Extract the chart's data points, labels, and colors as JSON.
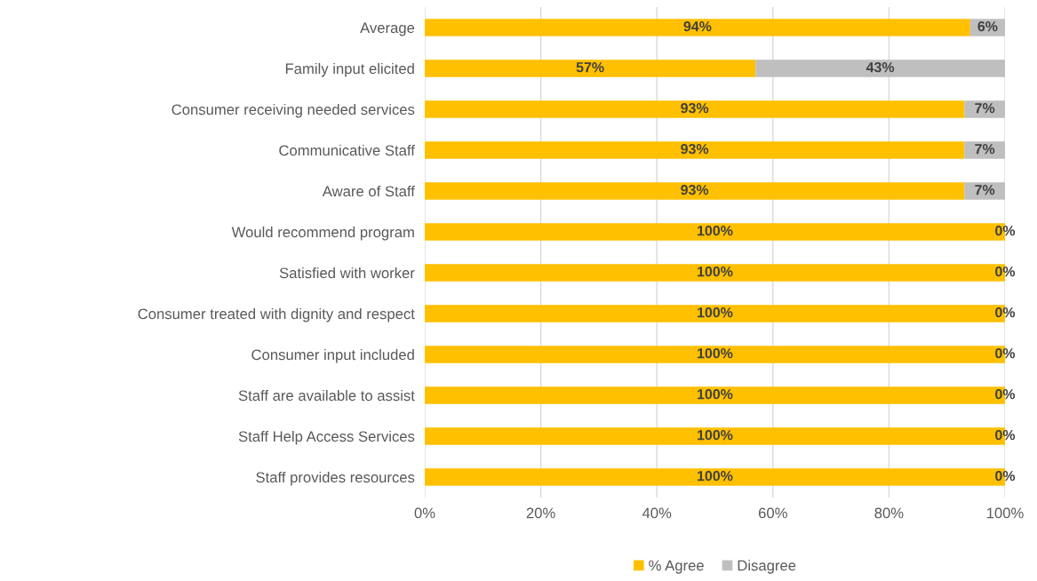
{
  "chart_data": {
    "type": "bar",
    "orientation": "horizontal",
    "stacked": true,
    "categories": [
      "Average",
      "Family input elicited",
      "Consumer receiving needed services",
      "Communicative Staff",
      "Aware of Staff",
      "Would recommend program",
      "Satisfied with worker",
      "Consumer treated with dignity and respect",
      "Consumer input included",
      "Staff are available to assist",
      "Staff Help Access Services",
      "Staff provides resources"
    ],
    "series": [
      {
        "name": "% Agree",
        "color": "#ffc000",
        "values": [
          94,
          57,
          93,
          93,
          93,
          100,
          100,
          100,
          100,
          100,
          100,
          100
        ],
        "value_labels": [
          "94%",
          "57%",
          "93%",
          "93%",
          "93%",
          "100%",
          "100%",
          "100%",
          "100%",
          "100%",
          "100%",
          "100%"
        ]
      },
      {
        "name": "Disagree",
        "color": "#bfbfbf",
        "values": [
          6,
          43,
          7,
          7,
          7,
          0,
          0,
          0,
          0,
          0,
          0,
          0
        ],
        "value_labels": [
          "6%",
          "43%",
          "7%",
          "7%",
          "7%",
          "0%",
          "0%",
          "0%",
          "0%",
          "0%",
          "0%",
          "0%"
        ]
      }
    ],
    "xlim": [
      0,
      100
    ],
    "xticks": [
      {
        "value": 0,
        "label": "0%"
      },
      {
        "value": 20,
        "label": "20%"
      },
      {
        "value": 40,
        "label": "40%"
      },
      {
        "value": 60,
        "label": "60%"
      },
      {
        "value": 80,
        "label": "80%"
      },
      {
        "value": 100,
        "label": "100%"
      }
    ],
    "grid": "x",
    "legend": "bottom"
  }
}
